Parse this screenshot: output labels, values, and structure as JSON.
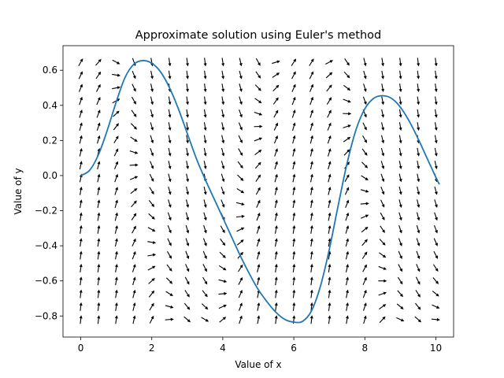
{
  "chart_data": {
    "type": "line",
    "title": "Approximate solution using Euler's method",
    "xlabel": "Value of x",
    "ylabel": "Value of y",
    "xlim": [
      -0.5,
      10.5
    ],
    "ylim": [
      -0.92,
      0.74
    ],
    "x_ticks": [
      0,
      2,
      4,
      6,
      8,
      10
    ],
    "x_tick_labels": [
      "0",
      "2",
      "4",
      "6",
      "8",
      "10"
    ],
    "y_ticks": [
      -0.8,
      -0.6,
      -0.4,
      -0.2,
      0.0,
      0.2,
      0.4,
      0.6
    ],
    "y_tick_labels": [
      "−0.8",
      "−0.6",
      "−0.4",
      "−0.2",
      "0.0",
      "0.2",
      "0.4",
      "0.6"
    ],
    "grid": false,
    "series": [
      {
        "color": "#1f77b4",
        "x": [
          0,
          0.25,
          0.5,
          0.75,
          1.0,
          1.25,
          1.5,
          1.75,
          2.0,
          2.25,
          2.5,
          2.75,
          3.0,
          3.25,
          3.5,
          3.75,
          4.0,
          4.25,
          4.5,
          4.75,
          5.0,
          5.25,
          5.5,
          5.75,
          6.0,
          6.25,
          6.5,
          6.75,
          7.0,
          7.25,
          7.5,
          7.75,
          8.0,
          8.25,
          8.5,
          8.75,
          9.0,
          9.25,
          9.5,
          9.75,
          10.0,
          10.1
        ],
        "y": [
          0.0,
          0.03,
          0.12,
          0.26,
          0.42,
          0.56,
          0.635,
          0.655,
          0.64,
          0.59,
          0.5,
          0.38,
          0.24,
          0.1,
          -0.02,
          -0.13,
          -0.24,
          -0.35,
          -0.46,
          -0.56,
          -0.65,
          -0.72,
          -0.78,
          -0.82,
          -0.835,
          -0.83,
          -0.77,
          -0.63,
          -0.42,
          -0.17,
          0.07,
          0.26,
          0.38,
          0.44,
          0.455,
          0.44,
          0.39,
          0.31,
          0.21,
          0.1,
          -0.01,
          -0.05
        ]
      }
    ],
    "slope_field": {
      "color": "#000000",
      "x_start": 0,
      "x_step": 0.5,
      "x_count": 21,
      "y_start": -0.82,
      "y_step": 0.0733,
      "y_count": 21
    }
  }
}
